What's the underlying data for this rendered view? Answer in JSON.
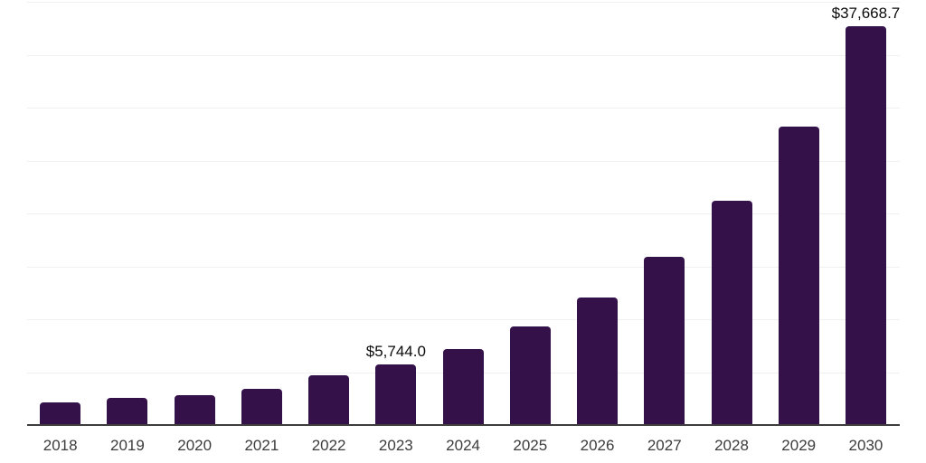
{
  "chart_data": {
    "type": "bar",
    "title": "",
    "xlabel": "",
    "ylabel": "",
    "categories": [
      "2018",
      "2019",
      "2020",
      "2021",
      "2022",
      "2023",
      "2024",
      "2025",
      "2026",
      "2027",
      "2028",
      "2029",
      "2030"
    ],
    "values": [
      2150,
      2580,
      2860,
      3460,
      4720,
      5744.0,
      7180,
      9300,
      12050,
      15900,
      21200,
      28200,
      37668.7
    ],
    "value_labels": [
      "",
      "",
      "",
      "",
      "",
      "$5,744.0",
      "",
      "",
      "",
      "",
      "",
      "",
      "$37,668.7"
    ],
    "ylim": [
      0,
      40000
    ],
    "gridline_interval": 5000,
    "grid": true,
    "legend": false,
    "colors": {
      "bar": "#35114a",
      "axis": "#3d3d3d",
      "gridline": "#f0f0f0",
      "tick_label": "#3c3c3c",
      "data_label": "#0a0a0a",
      "background": "#ffffff"
    }
  }
}
